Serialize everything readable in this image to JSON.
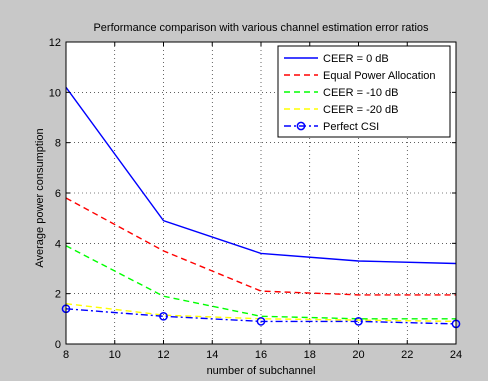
{
  "chart_data": {
    "type": "line",
    "title": "Performance comparison with various channel estimation error ratios",
    "xlabel": "number of subchannel",
    "ylabel": "Average power consumption",
    "xlim": [
      8,
      24
    ],
    "ylim": [
      0,
      12
    ],
    "xticks": [
      8,
      10,
      12,
      14,
      16,
      18,
      20,
      22,
      24
    ],
    "yticks": [
      0,
      2,
      4,
      6,
      8,
      10,
      12
    ],
    "grid": true,
    "legend_position": "top-right",
    "x": [
      8,
      12,
      16,
      20,
      24
    ],
    "series": [
      {
        "name": "CEER = 0 dB",
        "values": [
          10.2,
          4.9,
          3.6,
          3.3,
          3.2
        ],
        "color": "#0000ff",
        "dash": "solid",
        "marker": "none"
      },
      {
        "name": "Equal Power Allocation",
        "values": [
          5.8,
          3.7,
          2.1,
          1.95,
          1.95
        ],
        "color": "#ff0000",
        "dash": "dashed",
        "marker": "none"
      },
      {
        "name": "CEER = -10 dB",
        "values": [
          3.9,
          1.9,
          1.1,
          1.0,
          1.0
        ],
        "color": "#00ff00",
        "dash": "dashed",
        "marker": "none"
      },
      {
        "name": "CEER = -20 dB",
        "values": [
          1.6,
          1.15,
          1.0,
          0.95,
          0.9
        ],
        "color": "#ffff00",
        "dash": "dashed",
        "marker": "none"
      },
      {
        "name": "Perfect CSI",
        "values": [
          1.4,
          1.1,
          0.9,
          0.9,
          0.8
        ],
        "color": "#0000ff",
        "dash": "dashdot",
        "marker": "circle"
      }
    ]
  },
  "colors": {
    "figure_background": "#c8c8c8",
    "axes_background": "#ffffff"
  }
}
